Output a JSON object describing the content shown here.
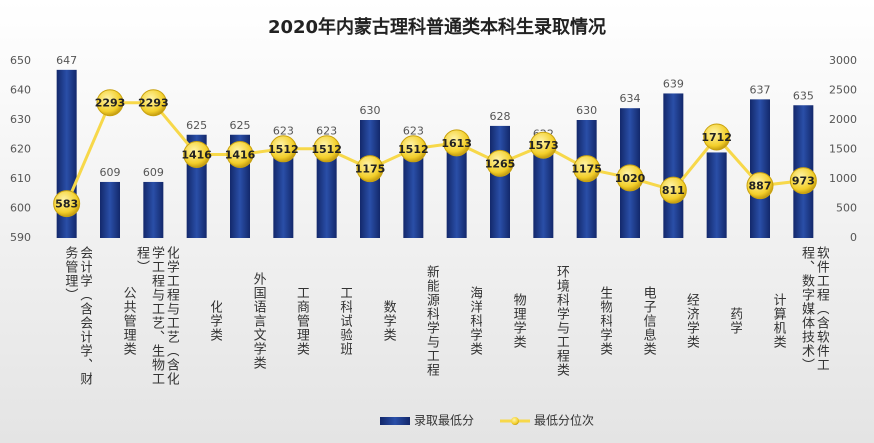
{
  "chart_data": {
    "type": "bar_line",
    "title": "2020年内蒙古理科普通类本科生录取情况",
    "categories": [
      "会计学（含会计学、财务管理）",
      "公共管理类",
      "化学工程与工艺（含化学工程与工艺、生物工程）",
      "化学类",
      "外国语言文学类",
      "工商管理类",
      "工科试验班",
      "数学类",
      "新能源科学与工程",
      "海洋科学类",
      "物理学类",
      "环境科学与工程类",
      "生物科学类",
      "电子信息类",
      "经济学类",
      "药学",
      "计算机类",
      "软件工程（含软件工程、数字媒体技术）"
    ],
    "series": [
      {
        "name": "录取最低分",
        "type": "bar",
        "color": "#1f3f8f",
        "values": [
          647,
          609,
          609,
          625,
          625,
          623,
          623,
          630,
          623,
          621,
          628,
          622,
          630,
          634,
          639,
          619,
          637,
          635
        ]
      },
      {
        "name": "最低分位次",
        "type": "line",
        "axis": "y2",
        "color": "#f7d84a",
        "values": [
          583,
          2293,
          2293,
          1416,
          1416,
          1512,
          1512,
          1175,
          1512,
          1613,
          1265,
          1573,
          1175,
          1020,
          811,
          1712,
          887,
          973
        ]
      }
    ],
    "ylim": [
      590,
      650
    ],
    "yticks": [
      590,
      600,
      610,
      620,
      630,
      640,
      650
    ],
    "y2lim": [
      0,
      3000
    ],
    "y2ticks": [
      0,
      500,
      1000,
      1500,
      2000,
      2500,
      3000
    ],
    "grid": false,
    "legend": "bottom"
  }
}
